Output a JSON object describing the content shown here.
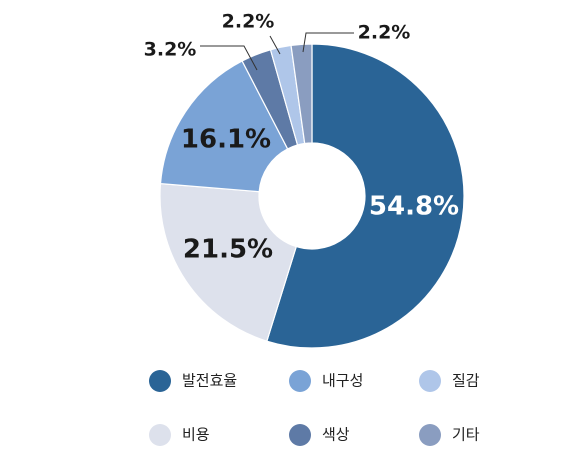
{
  "chart_data": {
    "type": "donut",
    "categories": [
      "발전효율",
      "비용",
      "내구성",
      "색상",
      "질감",
      "기타"
    ],
    "values": [
      54.8,
      21.5,
      16.1,
      3.2,
      2.2,
      2.2
    ],
    "value_labels": [
      "54.8%",
      "21.5%",
      "16.1%",
      "3.2%",
      "2.2%",
      "2.2%"
    ],
    "colors": [
      "#2a6496",
      "#dde1ec",
      "#7aa3d6",
      "#5e7aa6",
      "#afc6e9",
      "#8a9dc0"
    ]
  }
}
